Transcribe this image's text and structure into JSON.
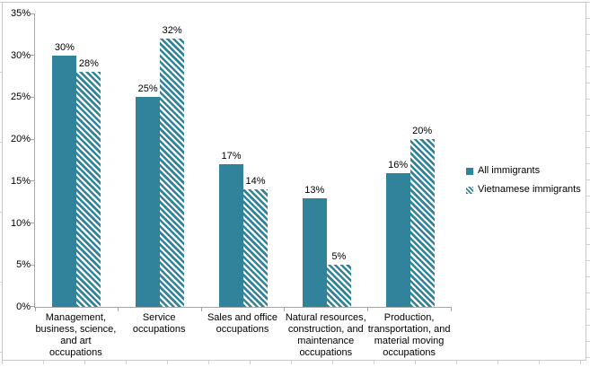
{
  "chart_data": {
    "type": "bar",
    "title": "",
    "xlabel": "",
    "ylabel": "",
    "categories": [
      "Management,\nbusiness, science,\nand art\noccupations",
      "Service\noccupations",
      "Sales and office\noccupations",
      "Natural resources,\nconstruction, and\nmaintenance\noccupations",
      "Production,\ntransportation, and\nmaterial moving\noccupations"
    ],
    "series": [
      {
        "name": "All immigrants",
        "pattern": "solid",
        "values": [
          30,
          25,
          17,
          13,
          16
        ]
      },
      {
        "name": "Vietnamese immigrants",
        "pattern": "diagonal-hatch",
        "values": [
          28,
          32,
          14,
          5,
          20
        ]
      }
    ],
    "data_labels": [
      "30%",
      "28%",
      "25%",
      "32%",
      "17%",
      "14%",
      "13%",
      "5%",
      "16%",
      "20%"
    ],
    "value_suffix": "%",
    "ylim": [
      0,
      35
    ],
    "ytick_step": 5,
    "ytick_labels": [
      "0%",
      "5%",
      "10%",
      "15%",
      "20%",
      "25%",
      "30%",
      "35%"
    ],
    "grid": false,
    "legend_position": "right"
  },
  "colors": {
    "bar_fill": "#31839b",
    "hatch_background": "#ffffff",
    "axis": "#a6a6a6",
    "text": "#000000",
    "frame_border": "#c9c9c9"
  }
}
